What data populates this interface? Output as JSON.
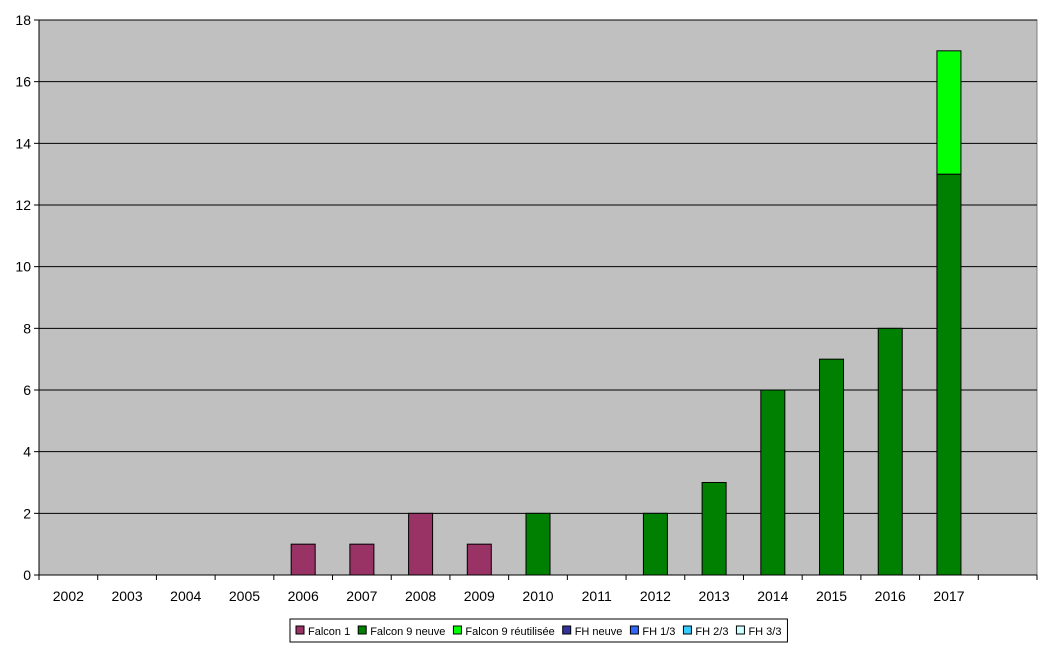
{
  "chart_data": {
    "type": "bar",
    "stacked": true,
    "title": "",
    "xlabel": "",
    "ylabel": "",
    "categories": [
      "2002",
      "2003",
      "2004",
      "2005",
      "2006",
      "2007",
      "2008",
      "2009",
      "2010",
      "2011",
      "2012",
      "2013",
      "2014",
      "2015",
      "2016",
      "2017"
    ],
    "ylim": [
      0,
      18
    ],
    "yticks": [
      0,
      2,
      4,
      6,
      8,
      10,
      12,
      14,
      16,
      18
    ],
    "grid": true,
    "legend_position": "bottom",
    "series": [
      {
        "name": "Falcon 1",
        "color": "#993366",
        "values": [
          0,
          0,
          0,
          0,
          1,
          1,
          2,
          1,
          0,
          0,
          0,
          0,
          0,
          0,
          0,
          0
        ]
      },
      {
        "name": "Falcon 9 neuve",
        "color": "#008000",
        "values": [
          0,
          0,
          0,
          0,
          0,
          0,
          0,
          0,
          2,
          0,
          2,
          3,
          6,
          7,
          8,
          13
        ]
      },
      {
        "name": "Falcon 9 réutilisée",
        "color": "#00ff00",
        "values": [
          0,
          0,
          0,
          0,
          0,
          0,
          0,
          0,
          0,
          0,
          0,
          0,
          0,
          0,
          0,
          4
        ]
      },
      {
        "name": "FH neuve",
        "color": "#333399",
        "values": [
          0,
          0,
          0,
          0,
          0,
          0,
          0,
          0,
          0,
          0,
          0,
          0,
          0,
          0,
          0,
          0
        ]
      },
      {
        "name": "FH 1/3",
        "color": "#3366ff",
        "values": [
          0,
          0,
          0,
          0,
          0,
          0,
          0,
          0,
          0,
          0,
          0,
          0,
          0,
          0,
          0,
          0
        ]
      },
      {
        "name": "FH 2/3",
        "color": "#33ccff",
        "values": [
          0,
          0,
          0,
          0,
          0,
          0,
          0,
          0,
          0,
          0,
          0,
          0,
          0,
          0,
          0,
          0
        ]
      },
      {
        "name": "FH 3/3",
        "color": "#ccffff",
        "values": [
          0,
          0,
          0,
          0,
          0,
          0,
          0,
          0,
          0,
          0,
          0,
          0,
          0,
          0,
          0,
          0
        ]
      }
    ],
    "colors": {
      "plot_background": "#c0c0c0",
      "gridline": "#000000"
    }
  }
}
